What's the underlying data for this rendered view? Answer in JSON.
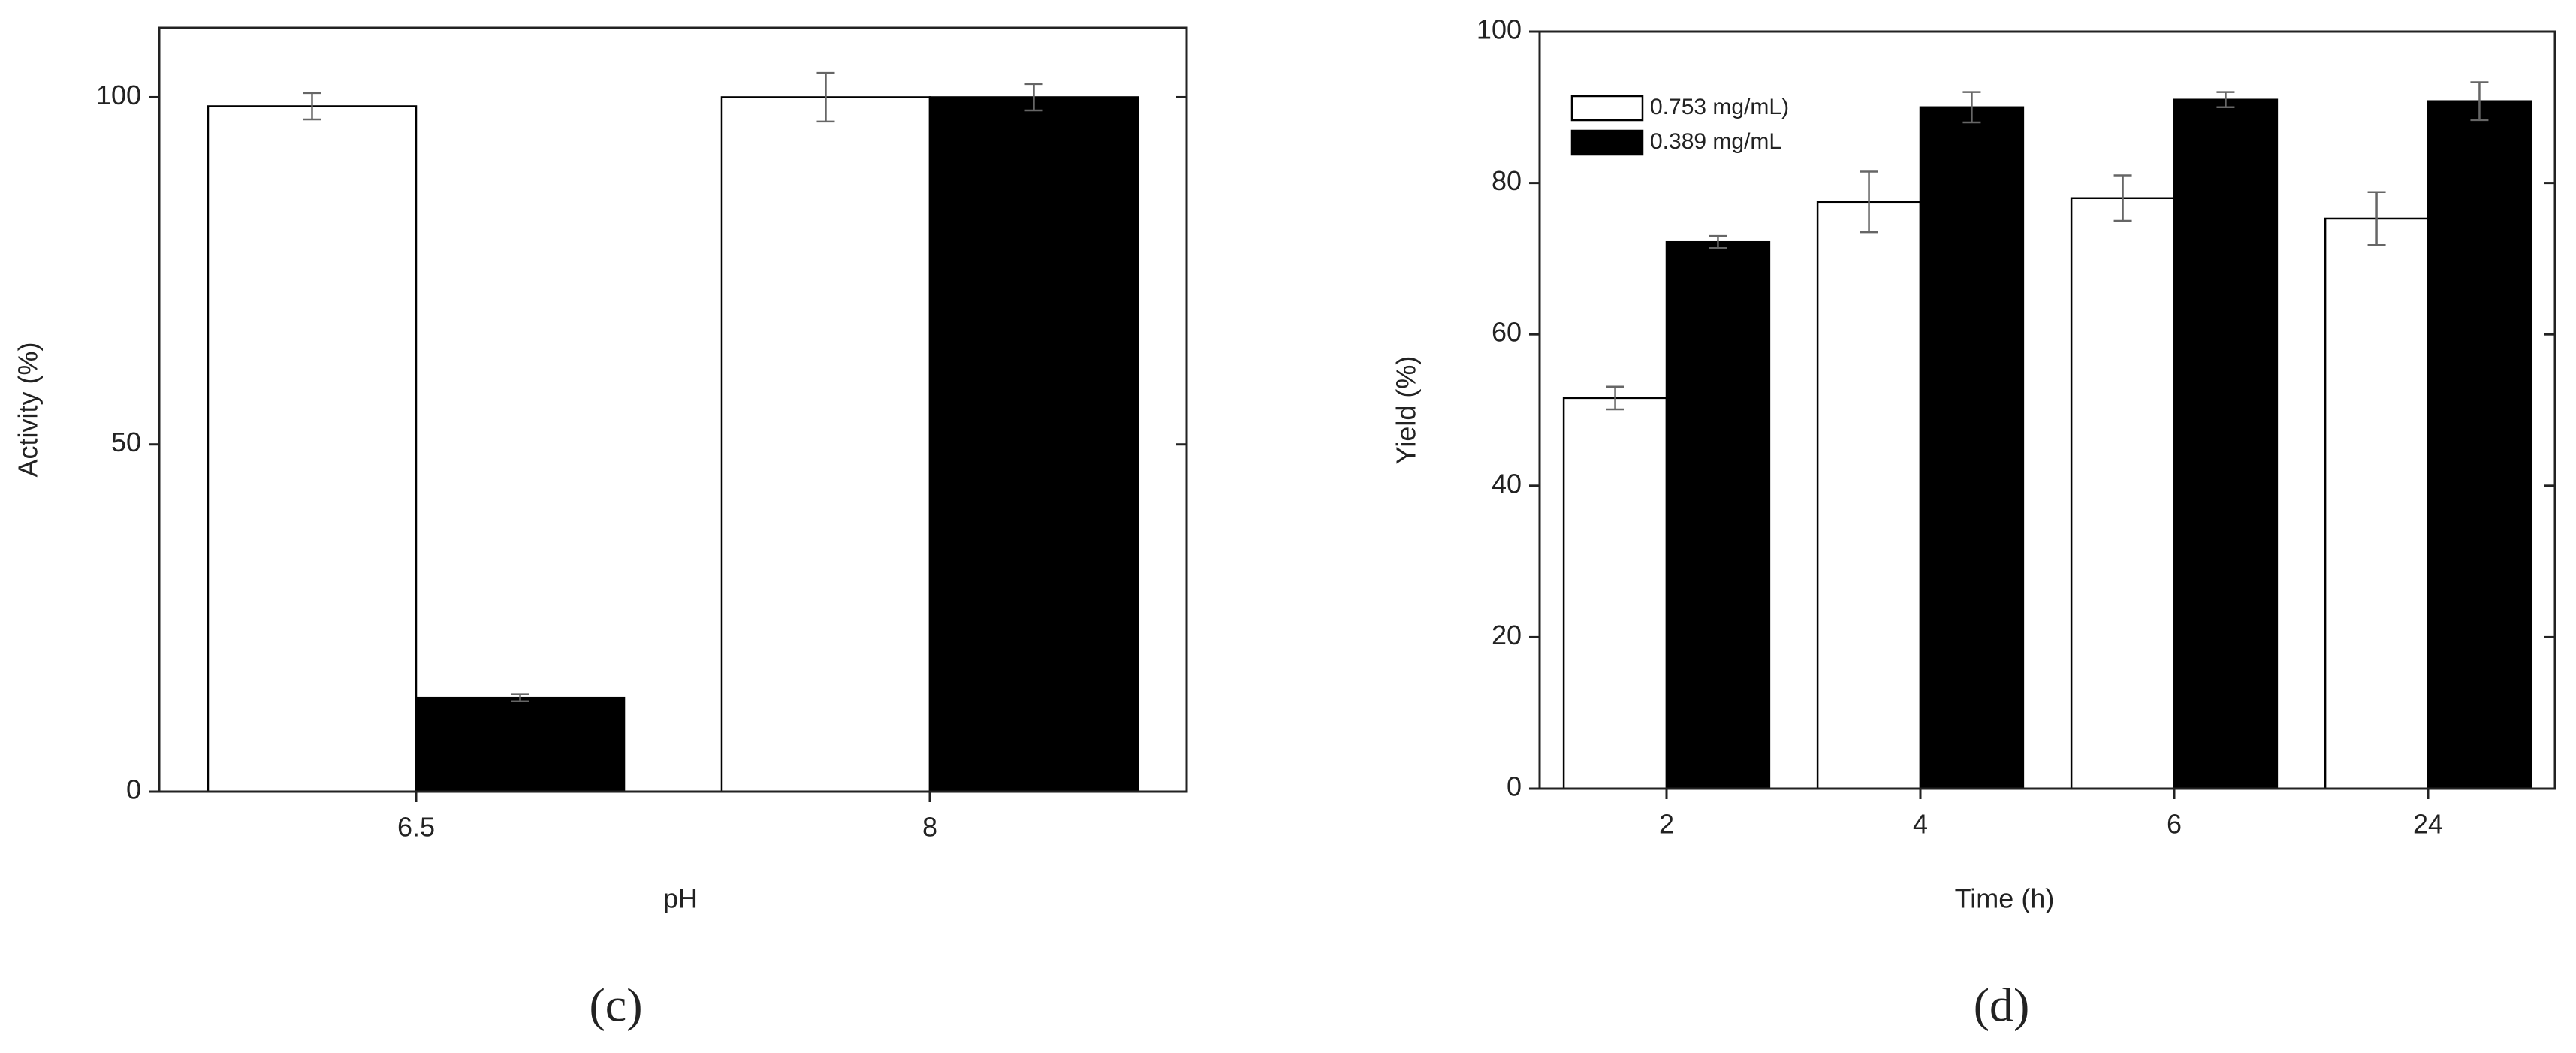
{
  "chart_data": [
    {
      "type": "bar",
      "caption": "(c)",
      "x_label": "pH",
      "y_label": "Activity (%)",
      "categories": [
        "6.5",
        "8"
      ],
      "series": [
        {
          "color": "#ffffff",
          "values": [
            98.7,
            100
          ],
          "errors": [
            1.9,
            3.5
          ]
        },
        {
          "color": "#000000",
          "values": [
            13.5,
            100
          ],
          "errors": [
            0.5,
            1.9
          ]
        }
      ],
      "ylim": [
        0,
        110
      ],
      "yticks": [
        0,
        50,
        100
      ]
    },
    {
      "type": "bar",
      "caption": "(d)",
      "x_label": "Time (h)",
      "y_label": "Yield (%)",
      "categories": [
        "2",
        "4",
        "6",
        "24"
      ],
      "series": [
        {
          "name": "0.753 mg/mL)",
          "color": "#ffffff",
          "values": [
            51.6,
            77.5,
            78,
            75.3
          ],
          "errors": [
            1.5,
            4,
            3,
            3.5
          ]
        },
        {
          "name": "0.389 mg/mL",
          "color": "#000000",
          "values": [
            72.2,
            90,
            91,
            90.8
          ],
          "errors": [
            0.8,
            2,
            1,
            2.5
          ]
        }
      ],
      "ylim": [
        0,
        100
      ],
      "yticks": [
        0,
        20,
        40,
        60,
        80,
        100
      ],
      "legend": "upper left"
    }
  ]
}
